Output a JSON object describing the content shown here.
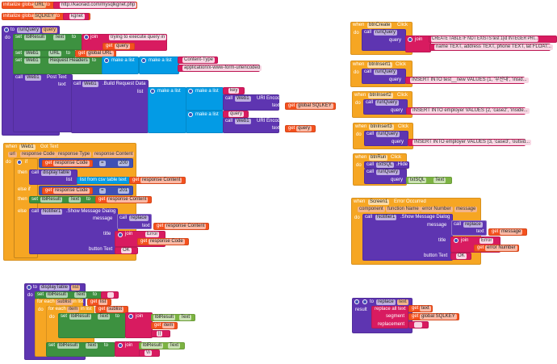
{
  "kw": {
    "initialize_global": "initialize global",
    "to": "to",
    "do": "do",
    "call": "call",
    "set": "set",
    "get": "get",
    "join": "join",
    "make_a_list": "make a list",
    "when": "when",
    "then": "then",
    "else_if": "else if",
    "else": "else",
    "if": "if",
    "text": "text",
    "list": "list",
    "query": "query",
    "message": "message",
    "title": "title",
    "button_text": "button Text",
    "for_each": "for each",
    "in_list": "in list",
    "result": "result",
    "url": "url"
  },
  "globals": [
    {
      "name": "URL",
      "value": "http://kaoraid.com/mysqlkgnet.php"
    },
    {
      "name": "SQLKEY",
      "value": "kgnet"
    }
  ],
  "runQuery": {
    "name": "runQuery",
    "param": "query",
    "lbl": "lblResult",
    "prop_text": "Text",
    "msg": "trying to execute query in",
    "web": "Web1",
    "prop_url": "URL",
    "global_url": "global URL",
    "prop_headers": "Request Headers",
    "header_key": "Content-Type",
    "header_value": "application/x-www-form-urlencoded",
    "post_text": "Post Text",
    "build": ".Build Request Data",
    "key": "key",
    "uri_encode": "URI Encode",
    "global_sqlkey": "global SQLKEY"
  },
  "gotText": {
    "component": "Web1",
    "event": "Got Text",
    "params": [
      "url",
      "response Code",
      "response Type",
      "response Content"
    ],
    "eq": "=",
    "code1": "200",
    "code2": "201",
    "display": "displayTable",
    "csv": "list from csv table  text",
    "notifier": "Notifier1",
    "show": ".Show Message Dialog",
    "replace": "replace",
    "error": "Error",
    "ok": "OK",
    "lbl": "lblResult",
    "prop_text": "Text"
  },
  "clicks": [
    {
      "component": "btnCreate",
      "event": "Click",
      "proc": "runQuery",
      "strings": [
        "CREATE TABLE IF NOT EXISTS test 1(id INTEGER PRI...",
        "name TEXT, address TEXT, phone TEXT, lat FLOAT..."
      ]
    },
    {
      "component": "btnInsert1",
      "event": "Click",
      "proc": "runQuery",
      "strings": [
        "INSERT INTO test__new VALUES (1, '부산대', 'insid..."
      ]
    },
    {
      "component": "btnInsert2",
      "event": "Click",
      "proc": "runQuery",
      "strings": [
        "INSERT INTO employer VALUES (2, 'case2', 'inside..."
      ]
    },
    {
      "component": "btnInsert3",
      "event": "Click",
      "proc": "runQuery",
      "strings": [
        "INSERT INTO employer VALUES (3, 'case3', 'outsid..."
      ]
    },
    {
      "component": "btnRun",
      "event": "Click",
      "proc": "runQuery",
      "txt": "txtSQL",
      "hide": ".Hide Keyboard",
      "prop_text": "Text"
    }
  ],
  "errorEvent": {
    "component": "Screen1",
    "event": "Error Occurred",
    "params": [
      "component",
      "function Name",
      "error Number",
      "message"
    ],
    "notifier": "Notifier1",
    "show": ".Show Message Dialog",
    "replace": "replace",
    "get_message": "message",
    "error": "Error",
    "error_number": "error Number",
    "ok": "OK"
  },
  "displayTable": {
    "name": "displayTable",
    "param": "list",
    "lbl": "lblResult",
    "prop_text": "Text",
    "empty": "",
    "sublist": "sublist",
    "item": "item",
    "sep": "||",
    "newline": "\\n"
  },
  "replaceProc": {
    "name": "replace",
    "param": "text",
    "replace_all": "replace all text",
    "segment": "segment",
    "replacement": "replacement",
    "global_sqlkey": "global SQLKEY",
    "repl_value": ""
  },
  "colors": {
    "event": "#f6a623",
    "procedure": "#5e35b1",
    "setter": "#3d9140",
    "text": "#d81b60",
    "getter": "#f4511e",
    "list": "#039be5",
    "component": "#7cb342",
    "compare": "#3f51b5"
  }
}
